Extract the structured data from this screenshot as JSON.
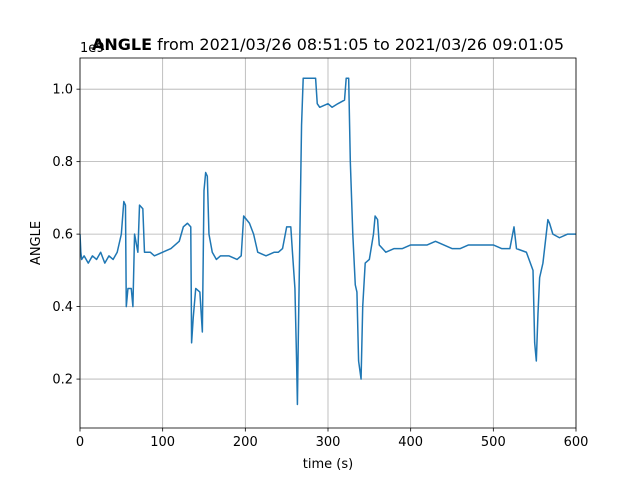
{
  "chart_data": {
    "type": "line",
    "title": [
      "ANGLE",
      "from 2021/03/26 08:51:05 to 2021/03/26 09:01:05"
    ],
    "xlabel": "time (s)",
    "ylabel": "ANGLE",
    "y_offset_text": "1e9",
    "color": "#1f77b4",
    "grid": true,
    "xlim": [
      0,
      600
    ],
    "xticks": [
      0,
      100,
      200,
      300,
      400,
      500,
      600
    ],
    "ylim": [
      0.065,
      1.086
    ],
    "yticks": [
      0.2,
      0.4,
      0.6,
      0.8,
      {
        "value": 1,
        "label": "1.0"
      }
    ],
    "x": [
      0,
      1,
      2,
      5,
      10,
      15,
      20,
      25,
      30,
      35,
      40,
      45,
      50,
      53,
      55,
      56,
      58,
      62,
      64,
      66,
      70,
      72,
      76,
      78,
      85,
      90,
      100,
      110,
      115,
      120,
      125,
      130,
      134,
      135,
      137,
      140,
      145,
      148,
      150,
      152,
      154,
      156,
      160,
      165,
      170,
      180,
      190,
      195,
      198,
      205,
      210,
      215,
      225,
      235,
      240,
      245,
      250,
      255,
      257,
      260,
      262,
      263,
      264,
      266,
      268,
      270,
      280,
      285,
      287,
      290,
      300,
      305,
      312,
      320,
      322,
      325,
      327,
      330,
      333,
      335,
      337,
      340,
      342,
      345,
      350,
      355,
      357,
      360,
      362,
      370,
      380,
      390,
      400,
      410,
      420,
      430,
      440,
      450,
      460,
      470,
      480,
      490,
      500,
      510,
      520,
      525,
      528,
      540,
      548,
      550,
      552,
      554,
      556,
      558,
      560,
      563,
      566,
      568,
      572,
      580,
      590,
      600
    ],
    "values": [
      0.6,
      0.55,
      0.53,
      0.54,
      0.52,
      0.54,
      0.53,
      0.55,
      0.52,
      0.54,
      0.53,
      0.55,
      0.6,
      0.69,
      0.68,
      0.4,
      0.45,
      0.45,
      0.4,
      0.6,
      0.55,
      0.68,
      0.67,
      0.55,
      0.55,
      0.54,
      0.55,
      0.56,
      0.57,
      0.58,
      0.62,
      0.63,
      0.62,
      0.3,
      0.37,
      0.45,
      0.44,
      0.33,
      0.72,
      0.77,
      0.76,
      0.6,
      0.55,
      0.53,
      0.54,
      0.54,
      0.53,
      0.54,
      0.65,
      0.63,
      0.6,
      0.55,
      0.54,
      0.55,
      0.55,
      0.56,
      0.62,
      0.62,
      0.55,
      0.45,
      0.25,
      0.13,
      0.3,
      0.6,
      0.9,
      1.03,
      1.03,
      1.03,
      0.96,
      0.95,
      0.96,
      0.95,
      0.96,
      0.97,
      1.03,
      1.03,
      0.8,
      0.6,
      0.46,
      0.44,
      0.25,
      0.2,
      0.4,
      0.52,
      0.53,
      0.6,
      0.65,
      0.64,
      0.57,
      0.55,
      0.56,
      0.56,
      0.57,
      0.57,
      0.57,
      0.58,
      0.57,
      0.56,
      0.56,
      0.57,
      0.57,
      0.57,
      0.57,
      0.56,
      0.56,
      0.62,
      0.56,
      0.55,
      0.5,
      0.3,
      0.25,
      0.38,
      0.48,
      0.5,
      0.52,
      0.58,
      0.64,
      0.63,
      0.6,
      0.59,
      0.6,
      0.6
    ]
  }
}
